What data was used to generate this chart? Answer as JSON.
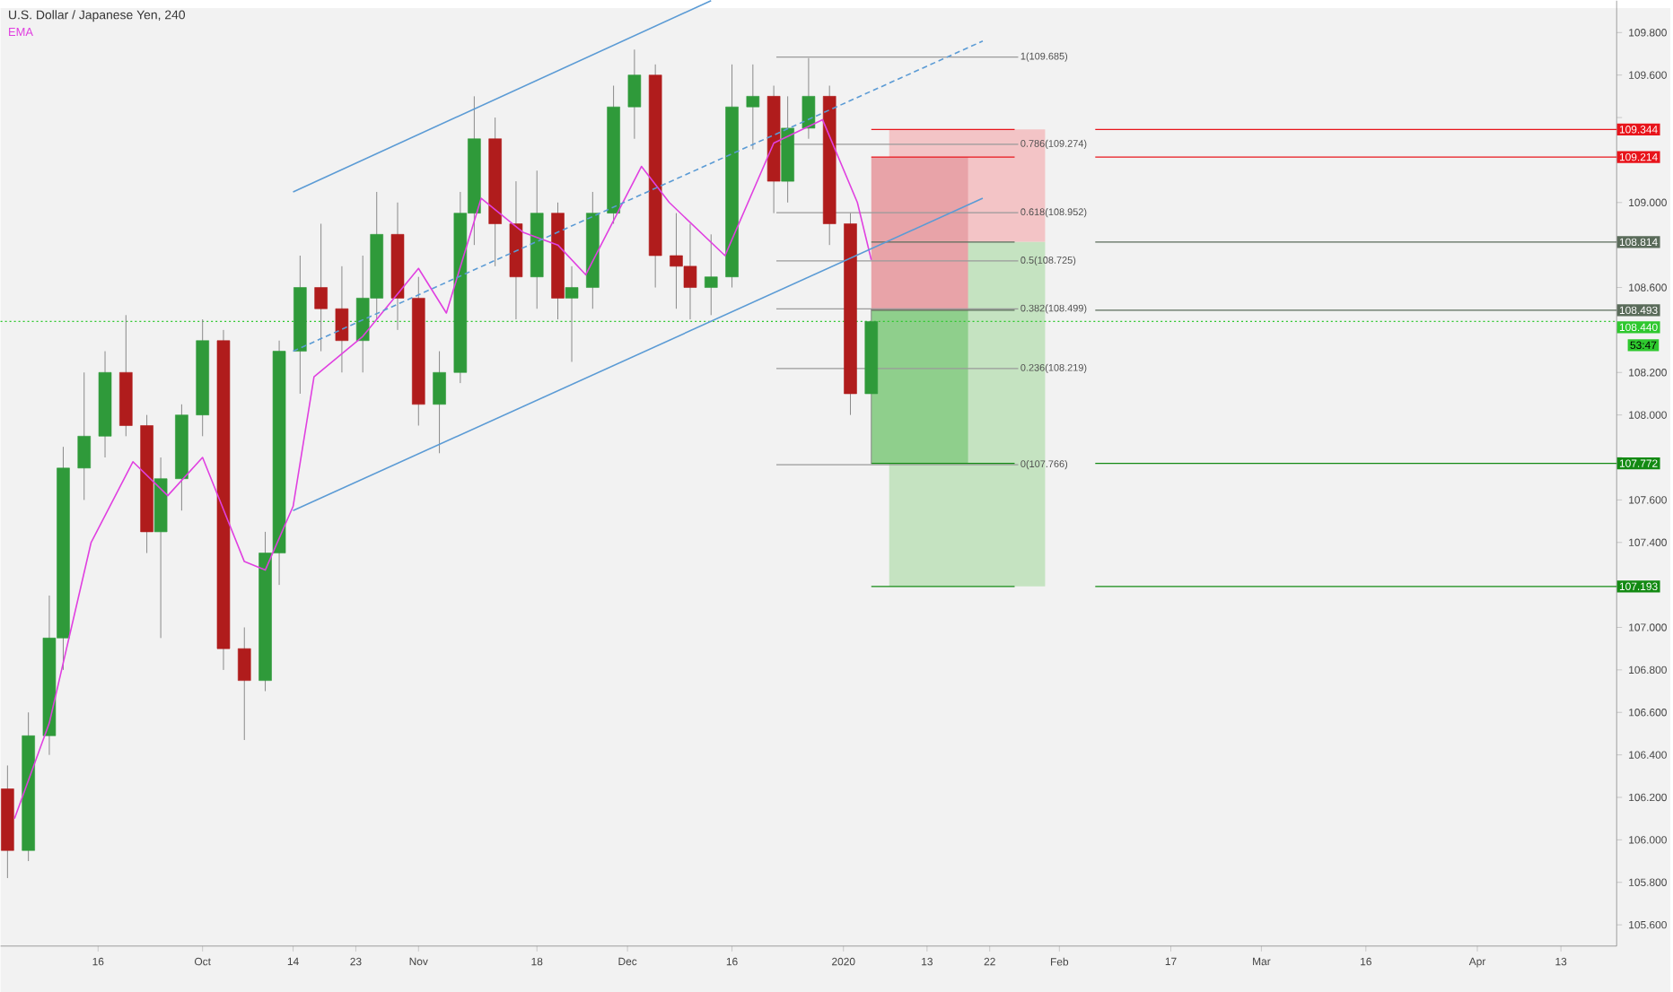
{
  "chart_data": {
    "type": "candlestick",
    "title": "U.S. Dollar / Japanese Yen, 240",
    "legend": "top left",
    "x": [
      "2019-09-03",
      "2019-09-06",
      "2019-09-09",
      "2019-09-11",
      "2019-09-14",
      "2019-09-17",
      "2019-09-20",
      "2019-09-23",
      "2019-09-25",
      "2019-09-28",
      "2019-10-01",
      "2019-10-04",
      "2019-10-07",
      "2019-10-10",
      "2019-10-12",
      "2019-10-15",
      "2019-10-18",
      "2019-10-21",
      "2019-10-24",
      "2019-10-26",
      "2019-10-29",
      "2019-11-01",
      "2019-11-04",
      "2019-11-07",
      "2019-11-09",
      "2019-11-12",
      "2019-11-15",
      "2019-11-18",
      "2019-11-21",
      "2019-11-23",
      "2019-11-26",
      "2019-11-29",
      "2019-12-02",
      "2019-12-05",
      "2019-12-08",
      "2019-12-10",
      "2019-12-13",
      "2019-12-16",
      "2019-12-19",
      "2019-12-22",
      "2019-12-24",
      "2019-12-27",
      "2019-12-30",
      "2020-01-02",
      "2020-01-05"
    ],
    "ohlc": [
      [
        106.24,
        106.35,
        105.82,
        105.95
      ],
      [
        105.95,
        106.6,
        105.9,
        106.49
      ],
      [
        106.49,
        107.15,
        106.4,
        106.95
      ],
      [
        106.95,
        107.85,
        106.8,
        107.75
      ],
      [
        107.75,
        108.2,
        107.6,
        107.9
      ],
      [
        107.9,
        108.3,
        107.8,
        108.2
      ],
      [
        108.2,
        108.47,
        107.9,
        107.95
      ],
      [
        107.95,
        108.0,
        107.35,
        107.45
      ],
      [
        107.45,
        107.8,
        106.95,
        107.7
      ],
      [
        107.7,
        108.05,
        107.55,
        108.0
      ],
      [
        108.0,
        108.45,
        107.9,
        108.35
      ],
      [
        108.35,
        108.4,
        106.8,
        106.9
      ],
      [
        106.9,
        107.0,
        106.47,
        106.75
      ],
      [
        106.75,
        107.45,
        106.7,
        107.35
      ],
      [
        107.35,
        108.35,
        107.2,
        108.3
      ],
      [
        108.3,
        108.75,
        108.1,
        108.6
      ],
      [
        108.6,
        108.9,
        108.3,
        108.5
      ],
      [
        108.5,
        108.7,
        108.2,
        108.35
      ],
      [
        108.35,
        108.75,
        108.2,
        108.55
      ],
      [
        108.55,
        109.05,
        108.45,
        108.85
      ],
      [
        108.85,
        109.0,
        108.4,
        108.55
      ],
      [
        108.55,
        108.65,
        107.95,
        108.05
      ],
      [
        108.05,
        108.3,
        107.82,
        108.2
      ],
      [
        108.2,
        109.05,
        108.15,
        108.95
      ],
      [
        108.95,
        109.5,
        108.8,
        109.3
      ],
      [
        109.3,
        109.4,
        108.7,
        108.9
      ],
      [
        108.9,
        109.1,
        108.45,
        108.65
      ],
      [
        108.65,
        109.15,
        108.5,
        108.95
      ],
      [
        108.95,
        109.0,
        108.45,
        108.55
      ],
      [
        108.55,
        108.7,
        108.25,
        108.6
      ],
      [
        108.6,
        109.05,
        108.5,
        108.95
      ],
      [
        108.95,
        109.55,
        108.9,
        109.45
      ],
      [
        109.45,
        109.72,
        109.3,
        109.6
      ],
      [
        109.6,
        109.65,
        108.6,
        108.75
      ],
      [
        108.75,
        108.95,
        108.5,
        108.7
      ],
      [
        108.7,
        108.9,
        108.45,
        108.6
      ],
      [
        108.6,
        108.85,
        108.47,
        108.65
      ],
      [
        108.65,
        109.65,
        108.6,
        109.45
      ],
      [
        109.45,
        109.65,
        109.25,
        109.5
      ],
      [
        109.5,
        109.55,
        108.95,
        109.1
      ],
      [
        109.1,
        109.5,
        109.0,
        109.35
      ],
      [
        109.35,
        109.68,
        109.3,
        109.5
      ],
      [
        109.5,
        109.55,
        108.8,
        108.9
      ],
      [
        108.9,
        108.95,
        108.0,
        108.1
      ],
      [
        108.1,
        108.5,
        107.77,
        108.44
      ]
    ],
    "series": [
      {
        "name": "EMA",
        "type": "line",
        "color": "#e040e0",
        "x": [
          "2019-09-04",
          "2019-09-09",
          "2019-09-15",
          "2019-09-21",
          "2019-09-26",
          "2019-10-01",
          "2019-10-07",
          "2019-10-10",
          "2019-10-14",
          "2019-10-17",
          "2019-10-24",
          "2019-11-01",
          "2019-11-05",
          "2019-11-10",
          "2019-11-16",
          "2019-11-21",
          "2019-11-25",
          "2019-12-03",
          "2019-12-07",
          "2019-12-15",
          "2019-12-22",
          "2019-12-29",
          "2020-01-03",
          "2020-01-05"
        ],
        "values": [
          106.1,
          106.55,
          107.4,
          107.78,
          107.62,
          107.8,
          107.31,
          107.27,
          107.57,
          108.18,
          108.37,
          108.69,
          108.48,
          109.02,
          108.86,
          108.8,
          108.66,
          109.17,
          109.0,
          108.75,
          109.28,
          109.39,
          109.0,
          108.73
        ]
      },
      {
        "type": "line",
        "color": "#5b9bd5",
        "line_style": "solid",
        "x": [
          "2019-10-14",
          "2020-01-21"
        ],
        "values": [
          107.55,
          109.02
        ]
      },
      {
        "type": "line",
        "color": "#5b9bd5",
        "line_style": "solid",
        "x": [
          "2019-10-14",
          "2019-12-13"
        ],
        "values": [
          109.05,
          109.95
        ]
      },
      {
        "type": "line",
        "color": "#5b9bd5",
        "line_style": "dashed",
        "x": [
          "2019-10-14",
          "2020-01-21"
        ],
        "values": [
          108.3,
          109.76
        ]
      }
    ],
    "bands": [
      {
        "axis": "y",
        "from": 108.814,
        "to": 109.344,
        "color": "#f3c4c6"
      },
      {
        "axis": "y",
        "from": 107.193,
        "to": 108.814,
        "color": "#c5e3c1"
      },
      {
        "axis": "y",
        "from": 108.493,
        "to": 109.214,
        "color": "#e8a3a8"
      },
      {
        "axis": "y",
        "from": 107.772,
        "to": 108.493,
        "color": "#8fcf8c"
      }
    ],
    "ref_lines": [
      {
        "axis": "y",
        "value": 109.685,
        "label": "1(109.685)",
        "color": "#9a9a9a",
        "line_style": "solid"
      },
      {
        "axis": "y",
        "value": 109.274,
        "label": "0.786(109.274)",
        "color": "#9a9a9a",
        "line_style": "solid"
      },
      {
        "axis": "y",
        "value": 108.952,
        "label": "0.618(108.952)",
        "color": "#9a9a9a",
        "line_style": "solid"
      },
      {
        "axis": "y",
        "value": 108.725,
        "label": "0.5(108.725)",
        "color": "#9a9a9a",
        "line_style": "solid"
      },
      {
        "axis": "y",
        "value": 108.499,
        "label": "0.382(108.499)",
        "color": "#9a9a9a",
        "line_style": "solid"
      },
      {
        "axis": "y",
        "value": 108.219,
        "label": "0.236(108.219)",
        "color": "#9a9a9a",
        "line_style": "solid"
      },
      {
        "axis": "y",
        "value": 107.766,
        "label": "0(107.766)",
        "color": "#9a9a9a",
        "line_style": "solid"
      },
      {
        "axis": "y",
        "value": 108.44,
        "label": "108.440",
        "color": "#2ec82e",
        "line_style": "dotted"
      },
      {
        "axis": "y",
        "value": 109.344,
        "label": "109.344",
        "color": "#e8141b"
      },
      {
        "axis": "y",
        "value": 109.214,
        "label": "109.214",
        "color": "#e8141b"
      },
      {
        "axis": "y",
        "value": 108.814,
        "label": "108.814",
        "color": "#5a6b5a"
      },
      {
        "axis": "y",
        "value": 108.493,
        "label": "108.493",
        "color": "#5a6b5a"
      },
      {
        "axis": "y",
        "value": 107.772,
        "label": "107.772",
        "color": "#138a13"
      },
      {
        "axis": "y",
        "value": 107.193,
        "label": "107.193",
        "color": "#138a13"
      }
    ],
    "annotations": [
      "53:47"
    ],
    "xlim": [
      "2019-09-02",
      "2020-04-21"
    ],
    "xticks": [
      {
        "value": "2019-09-16",
        "label": "16"
      },
      {
        "value": "2019-10-01",
        "label": "Oct"
      },
      {
        "value": "2019-10-14",
        "label": "14"
      },
      {
        "value": "2019-10-23",
        "label": "23"
      },
      {
        "value": "2019-11-01",
        "label": "Nov"
      },
      {
        "value": "2019-11-18",
        "label": "18"
      },
      {
        "value": "2019-12-01",
        "label": "Dec"
      },
      {
        "value": "2019-12-16",
        "label": "16"
      },
      {
        "value": "2020-01-01",
        "label": "2020"
      },
      {
        "value": "2020-01-13",
        "label": "13"
      },
      {
        "value": "2020-01-22",
        "label": "22"
      },
      {
        "value": "2020-02-01",
        "label": "Feb"
      },
      {
        "value": "2020-02-17",
        "label": "17"
      },
      {
        "value": "2020-03-01",
        "label": "Mar"
      },
      {
        "value": "2020-03-16",
        "label": "16"
      },
      {
        "value": "2020-04-01",
        "label": "Apr"
      },
      {
        "value": "2020-04-13",
        "label": "13"
      }
    ],
    "ylim": [
      105.5,
      109.95
    ],
    "yticks": [
      {
        "value": 105.6,
        "label": "105.600"
      },
      {
        "value": 105.8,
        "label": "105.800"
      },
      {
        "value": 106.0,
        "label": "106.000"
      },
      {
        "value": 106.2,
        "label": "106.200"
      },
      {
        "value": 106.4,
        "label": "106.400"
      },
      {
        "value": 106.6,
        "label": "106.600"
      },
      {
        "value": 106.8,
        "label": "106.800"
      },
      {
        "value": 107.0,
        "label": "107.000"
      },
      {
        "value": 107.2,
        "label": null
      },
      {
        "value": 107.4,
        "label": "107.400"
      },
      {
        "value": 107.6,
        "label": "107.600"
      },
      {
        "value": 107.8,
        "label": null
      },
      {
        "value": 108.0,
        "label": "108.000"
      },
      {
        "value": 108.2,
        "label": "108.200"
      },
      {
        "value": 108.4,
        "label": null
      },
      {
        "value": 108.6,
        "label": "108.600"
      },
      {
        "value": 108.8,
        "label": null
      },
      {
        "value": 109.0,
        "label": "109.000"
      },
      {
        "value": 109.2,
        "label": null
      },
      {
        "value": 109.4,
        "label": null
      },
      {
        "value": 109.6,
        "label": "109.600"
      },
      {
        "value": 109.8,
        "label": "109.800"
      }
    ]
  }
}
